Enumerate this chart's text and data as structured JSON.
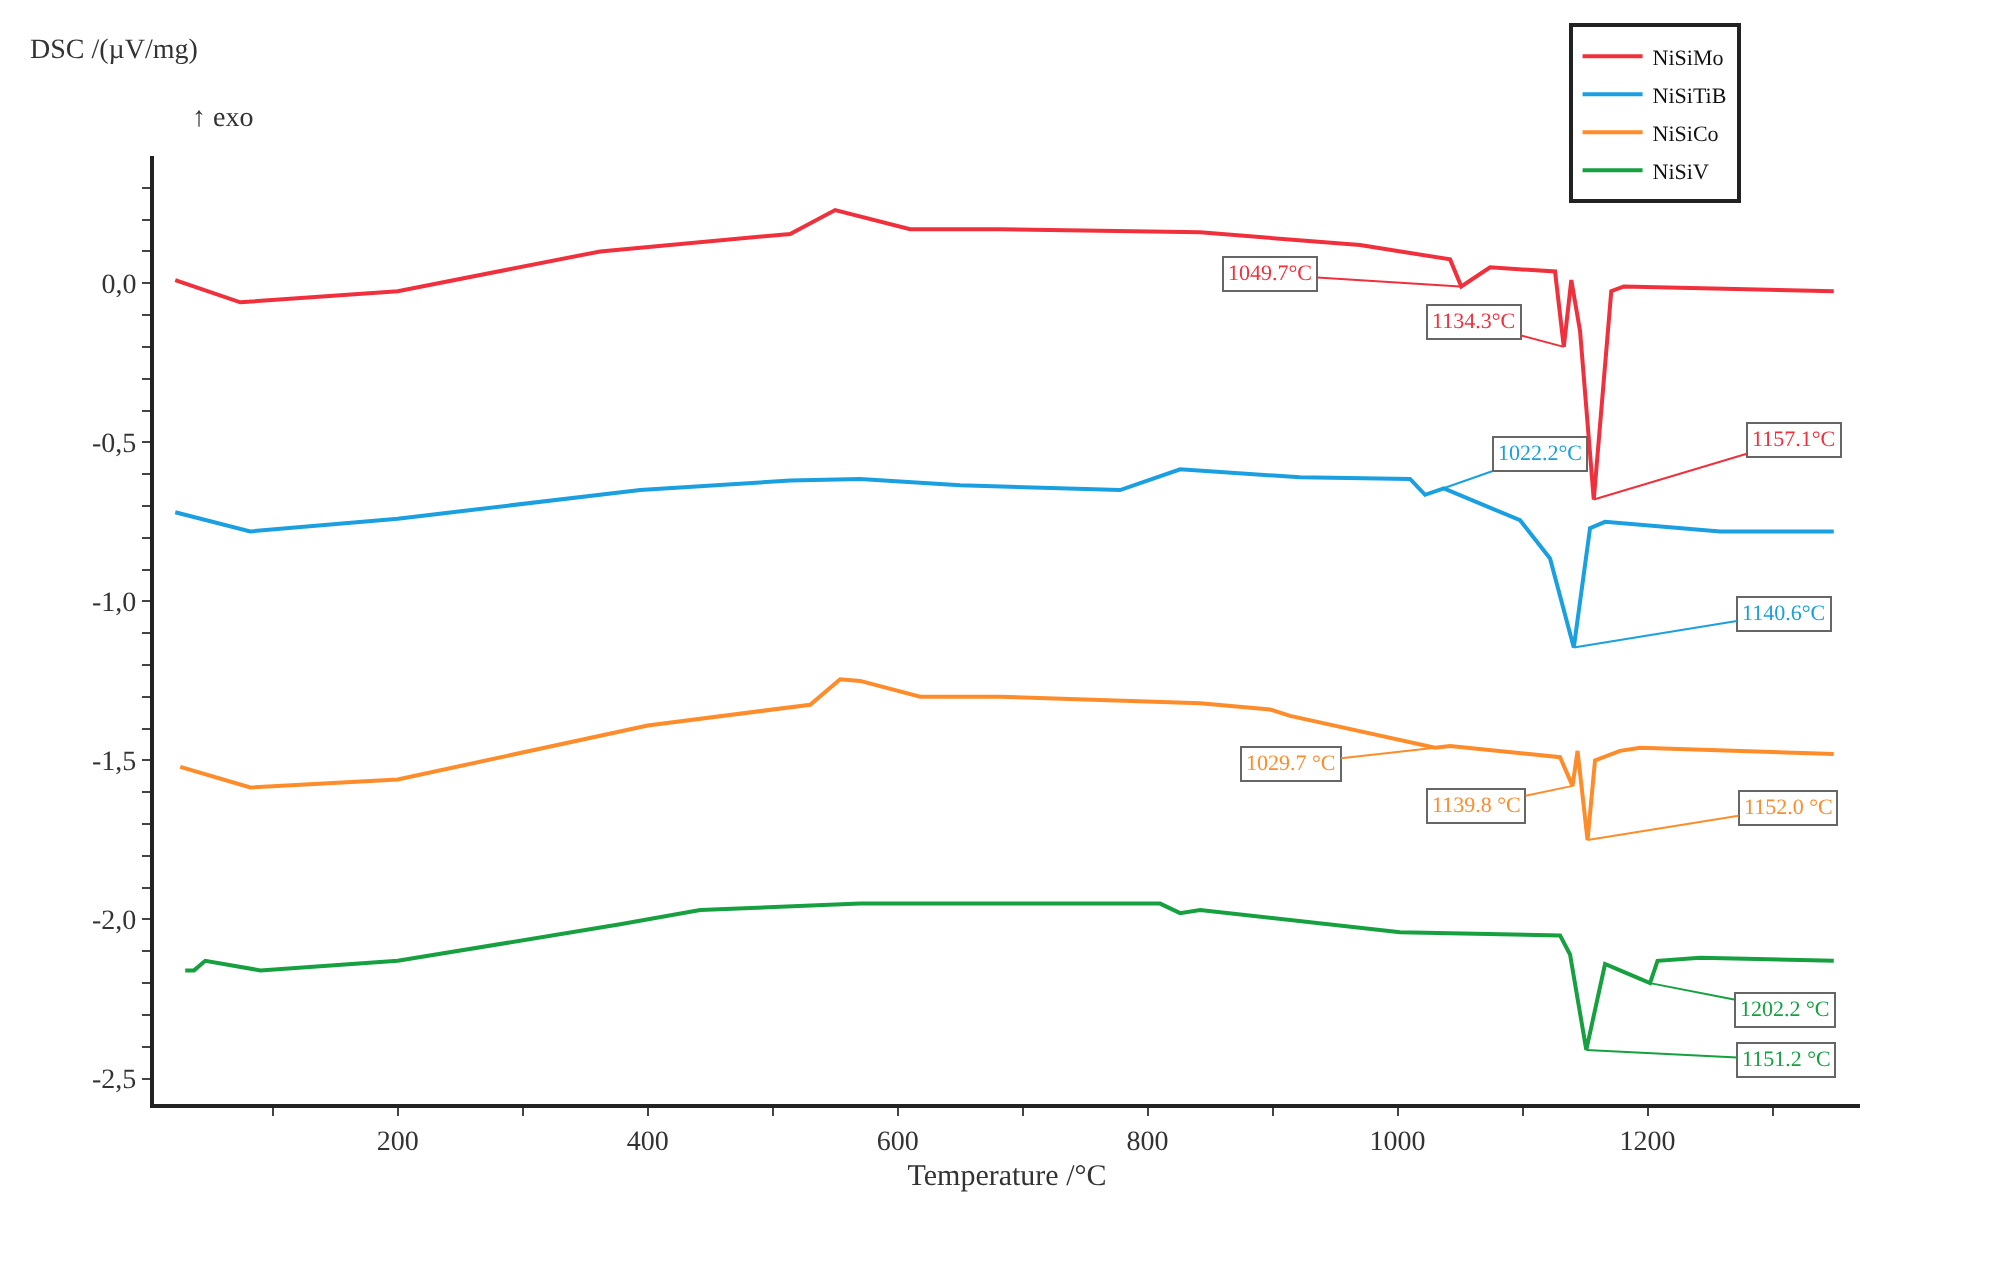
{
  "chart_data": {
    "type": "line",
    "xlabel": "Temperature /°C",
    "ylabel": "DSC /(µV/mg)",
    "xlim": [
      5,
      1370
    ],
    "ylim": [
      -2.58,
      0.4
    ],
    "xticks": [
      {
        "value": 100,
        "label": null
      },
      200,
      {
        "value": 300,
        "label": null
      },
      400,
      {
        "value": 500,
        "label": null
      },
      600,
      {
        "value": 700,
        "label": null
      },
      800,
      {
        "value": 900,
        "label": null
      },
      1000,
      {
        "value": 1100,
        "label": null
      },
      1200,
      {
        "value": 1300,
        "label": null
      }
    ],
    "yticks": [
      {
        "value": 0.3,
        "label": null
      },
      {
        "value": 0.2,
        "label": null
      },
      {
        "value": 0.1,
        "label": null
      },
      {
        "value": 0,
        "label": "0,0"
      },
      {
        "value": -0.1,
        "label": null
      },
      {
        "value": -0.2,
        "label": null
      },
      {
        "value": -0.3,
        "label": null
      },
      {
        "value": -0.4,
        "label": null
      },
      {
        "value": -0.5,
        "label": "-0,5"
      },
      {
        "value": -0.6,
        "label": null
      },
      {
        "value": -0.7,
        "label": null
      },
      {
        "value": -0.8,
        "label": null
      },
      {
        "value": -0.9,
        "label": null
      },
      {
        "value": -1.0,
        "label": "-1,0"
      },
      {
        "value": -1.1,
        "label": null
      },
      {
        "value": -1.2,
        "label": null
      },
      {
        "value": -1.3,
        "label": null
      },
      {
        "value": -1.4,
        "label": null
      },
      {
        "value": -1.5,
        "label": "-1,5"
      },
      {
        "value": -1.6,
        "label": null
      },
      {
        "value": -1.7,
        "label": null
      },
      {
        "value": -1.8,
        "label": null
      },
      {
        "value": -1.9,
        "label": null
      },
      {
        "value": -2.0,
        "label": "-2,0"
      },
      {
        "value": -2.1,
        "label": null
      },
      {
        "value": -2.2,
        "label": null
      },
      {
        "value": -2.3,
        "label": null
      },
      {
        "value": -2.4,
        "label": null
      },
      {
        "value": -2.5,
        "label": "-2,5"
      }
    ],
    "legend": "top right",
    "marker": "none",
    "line_style": "solid",
    "series": [
      {
        "name": "NiSiMo",
        "color": "#f0303c",
        "x": [
          22,
          74,
          200,
          362,
          514,
          550,
          610,
          682,
          842,
          970,
          1042,
          1051,
          1074,
          1126,
          1133,
          1139,
          1146,
          1157,
          1171,
          1181,
          1349
        ],
        "values": [
          0.01,
          -0.06,
          -0.025,
          0.1,
          0.155,
          0.23,
          0.17,
          0.17,
          0.16,
          0.12,
          0.075,
          -0.01,
          0.05,
          0.037,
          -0.2,
          0.01,
          -0.15,
          -0.68,
          -0.025,
          -0.01,
          -0.025
        ]
      },
      {
        "name": "NiSiTiB",
        "color": "#1aa0e0",
        "x": [
          22,
          82,
          200,
          394,
          514,
          570,
          650,
          778,
          826,
          922,
          1010,
          1022,
          1037,
          1098,
          1122,
          1141,
          1154,
          1166,
          1258,
          1349
        ],
        "values": [
          -0.72,
          -0.78,
          -0.74,
          -0.65,
          -0.62,
          -0.615,
          -0.635,
          -0.65,
          -0.585,
          -0.61,
          -0.615,
          -0.665,
          -0.645,
          -0.745,
          -0.865,
          -1.145,
          -0.77,
          -0.75,
          -0.78,
          -0.78
        ]
      },
      {
        "name": "NiSiCo",
        "color": "#ff8c2a",
        "x": [
          26,
          82,
          200,
          400,
          530,
          554,
          570,
          618,
          682,
          842,
          898,
          914,
          1030,
          1042,
          1130,
          1140,
          1144,
          1152,
          1158,
          1178,
          1194,
          1349
        ],
        "values": [
          -1.52,
          -1.585,
          -1.56,
          -1.39,
          -1.325,
          -1.245,
          -1.25,
          -1.3,
          -1.3,
          -1.32,
          -1.34,
          -1.36,
          -1.46,
          -1.455,
          -1.49,
          -1.58,
          -1.47,
          -1.75,
          -1.5,
          -1.47,
          -1.46,
          -1.48
        ]
      },
      {
        "name": "NiSiV",
        "color": "#16a040",
        "x": [
          30,
          37,
          46,
          90,
          200,
          378,
          442,
          570,
          682,
          810,
          826,
          842,
          1002,
          1130,
          1138,
          1151,
          1166,
          1178,
          1202,
          1208,
          1242,
          1349
        ],
        "values": [
          -2.16,
          -2.16,
          -2.13,
          -2.16,
          -2.13,
          -2.015,
          -1.97,
          -1.95,
          -1.95,
          -1.95,
          -1.98,
          -1.97,
          -2.04,
          -2.05,
          -2.11,
          -2.41,
          -2.14,
          -2.16,
          -2.2,
          -2.13,
          -2.12,
          -2.13
        ]
      }
    ],
    "annotations": [
      "↑ exo",
      {
        "text": "1049.7°C",
        "x": 1050,
        "y": -0.01
      },
      {
        "text": "1134.3°C",
        "x": 1133,
        "y": -0.2
      },
      {
        "text": "1157.1°C",
        "x": 1157,
        "y": -0.68
      },
      {
        "text": "1022.2°C",
        "x": 1022,
        "y": -0.665
      },
      {
        "text": "1140.6°C",
        "x": 1141,
        "y": -1.145
      },
      {
        "text": "1029.7 °C",
        "x": 1030,
        "y": -1.46
      },
      {
        "text": "1139.8 °C",
        "x": 1140,
        "y": -1.58
      },
      {
        "text": "1152.0 °C",
        "x": 1152,
        "y": -1.75
      },
      {
        "text": "1202.2 °C",
        "x": 1202,
        "y": -2.2
      },
      {
        "text": "1151.2 °C",
        "x": 1151,
        "y": -2.41
      }
    ]
  }
}
